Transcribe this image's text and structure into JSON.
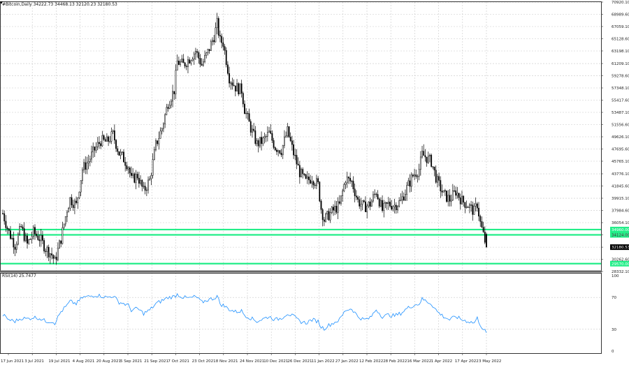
{
  "header": {
    "title": "#Bitcoin,Daily  34222.73 34468.13 32120.23 32180.53"
  },
  "rsi_label": "RSI(14) 25.7477",
  "colors": {
    "candle": "#000000",
    "support": "#22ee88",
    "rsi": "#1e90ff",
    "grid": "#c8c8c8",
    "last_price_bg": "#000000"
  },
  "chart_data": [
    {
      "type": "candlestick",
      "title": "#Bitcoin,Daily",
      "ohlc_last": {
        "open": 34222.73,
        "high": 34468.13,
        "low": 32120.23,
        "close": 32180.53
      },
      "y_ticks": [
        "70920.10",
        "68989.60",
        "67059.10",
        "65128.60",
        "63198.10",
        "61209.10",
        "59278.60",
        "57348.10",
        "55417.60",
        "53487.10",
        "51556.60",
        "49626.10",
        "47695.60",
        "45765.10",
        "43776.10",
        "41845.60",
        "39915.10",
        "37984.60",
        "36054.10",
        "34124.00",
        "32180.53",
        "30262.60",
        "28332.10"
      ],
      "y_range": [
        28332.1,
        70920.1
      ],
      "x_ticks": [
        "17 Jun 2021",
        "3 Jul 2021",
        "19 Jul 2021",
        "4 Aug 2021",
        "20 Aug 2021",
        "5 Sep 2021",
        "21 Sep 2021",
        "7 Oct 2021",
        "23 Oct 2021",
        "8 Nov 2021",
        "24 Nov 2021",
        "10 Dec 2021",
        "26 Dec 2021",
        "11 Jan 2022",
        "27 Jan 2022",
        "12 Feb 2022",
        "28 Feb 2022",
        "16 Mar 2022",
        "1 Apr 2022",
        "17 Apr 2022",
        "3 May 2022"
      ],
      "close_path": [
        [
          0,
          37500
        ],
        [
          4,
          34500
        ],
        [
          8,
          32500
        ],
        [
          12,
          35300
        ],
        [
          16,
          32600
        ],
        [
          20,
          34500
        ],
        [
          24,
          33600
        ],
        [
          28,
          32000
        ],
        [
          32,
          31000
        ],
        [
          34,
          29900
        ],
        [
          38,
          33500
        ],
        [
          42,
          38200
        ],
        [
          44,
          39800
        ],
        [
          48,
          38800
        ],
        [
          52,
          44500
        ],
        [
          56,
          45800
        ],
        [
          60,
          47600
        ],
        [
          64,
          49000
        ],
        [
          68,
          48800
        ],
        [
          72,
          50000
        ],
        [
          76,
          47000
        ],
        [
          78,
          46500
        ],
        [
          82,
          45000
        ],
        [
          84,
          42800
        ],
        [
          88,
          43500
        ],
        [
          92,
          41000
        ],
        [
          96,
          42800
        ],
        [
          100,
          48300
        ],
        [
          104,
          51000
        ],
        [
          108,
          55000
        ],
        [
          112,
          57000
        ],
        [
          114,
          61500
        ],
        [
          118,
          61000
        ],
        [
          122,
          62000
        ],
        [
          126,
          63200
        ],
        [
          130,
          61000
        ],
        [
          134,
          63000
        ],
        [
          138,
          65500
        ],
        [
          140,
          67500
        ],
        [
          142,
          64800
        ],
        [
          144,
          64500
        ],
        [
          148,
          59000
        ],
        [
          152,
          57500
        ],
        [
          156,
          57000
        ],
        [
          158,
          54000
        ],
        [
          162,
          51000
        ],
        [
          166,
          48500
        ],
        [
          170,
          49000
        ],
        [
          174,
          50200
        ],
        [
          178,
          48000
        ],
        [
          182,
          47500
        ],
        [
          186,
          50500
        ],
        [
          190,
          47000
        ],
        [
          194,
          44000
        ],
        [
          198,
          42500
        ],
        [
          202,
          43200
        ],
        [
          206,
          42000
        ],
        [
          208,
          38300
        ],
        [
          210,
          36500
        ],
        [
          212,
          37000
        ],
        [
          216,
          38000
        ],
        [
          220,
          38800
        ],
        [
          224,
          43000
        ],
        [
          228,
          42500
        ],
        [
          232,
          39500
        ],
        [
          236,
          38500
        ],
        [
          240,
          39000
        ],
        [
          244,
          41000
        ],
        [
          248,
          38000
        ],
        [
          252,
          39000
        ],
        [
          256,
          38800
        ],
        [
          260,
          39400
        ],
        [
          264,
          41500
        ],
        [
          268,
          43500
        ],
        [
          272,
          44500
        ],
        [
          274,
          46800
        ],
        [
          276,
          46500
        ],
        [
          280,
          45700
        ],
        [
          282,
          44000
        ],
        [
          284,
          42500
        ],
        [
          288,
          40500
        ],
        [
          292,
          39700
        ],
        [
          296,
          41000
        ],
        [
          300,
          39500
        ],
        [
          304,
          38800
        ],
        [
          308,
          37800
        ],
        [
          310,
          39000
        ],
        [
          312,
          36000
        ],
        [
          314,
          34100
        ],
        [
          316,
          32180
        ]
      ],
      "support_lines": [
        {
          "value": 34960,
          "label": "34960.00"
        },
        {
          "value": 34124,
          "label": "34124.00"
        },
        {
          "value": 29570,
          "label": "29570.00"
        }
      ],
      "last_price": {
        "value": 32180.53,
        "label": "32180.53"
      }
    },
    {
      "type": "line",
      "title": "RSI(14) 25.7477",
      "y_ticks": [
        "100",
        "70",
        "30",
        "0"
      ],
      "y_range": [
        0,
        100
      ],
      "points": [
        [
          0,
          48
        ],
        [
          4,
          42
        ],
        [
          8,
          40
        ],
        [
          12,
          44
        ],
        [
          16,
          43
        ],
        [
          20,
          45
        ],
        [
          24,
          44
        ],
        [
          28,
          40
        ],
        [
          32,
          40
        ],
        [
          34,
          38
        ],
        [
          38,
          52
        ],
        [
          42,
          60
        ],
        [
          44,
          65
        ],
        [
          48,
          62
        ],
        [
          52,
          70
        ],
        [
          56,
          71
        ],
        [
          60,
          73
        ],
        [
          64,
          72
        ],
        [
          68,
          70
        ],
        [
          72,
          72
        ],
        [
          76,
          64
        ],
        [
          78,
          63
        ],
        [
          82,
          60
        ],
        [
          84,
          54
        ],
        [
          88,
          56
        ],
        [
          92,
          50
        ],
        [
          96,
          54
        ],
        [
          100,
          62
        ],
        [
          104,
          66
        ],
        [
          108,
          70
        ],
        [
          112,
          71
        ],
        [
          114,
          74
        ],
        [
          118,
          70
        ],
        [
          122,
          69
        ],
        [
          126,
          71
        ],
        [
          130,
          64
        ],
        [
          134,
          67
        ],
        [
          138,
          69
        ],
        [
          140,
          72
        ],
        [
          142,
          62
        ],
        [
          144,
          60
        ],
        [
          148,
          55
        ],
        [
          152,
          52
        ],
        [
          156,
          53
        ],
        [
          158,
          48
        ],
        [
          162,
          44
        ],
        [
          166,
          40
        ],
        [
          170,
          43
        ],
        [
          174,
          46
        ],
        [
          178,
          42
        ],
        [
          182,
          44
        ],
        [
          186,
          50
        ],
        [
          190,
          46
        ],
        [
          194,
          40
        ],
        [
          198,
          38
        ],
        [
          202,
          42
        ],
        [
          206,
          40
        ],
        [
          208,
          33
        ],
        [
          210,
          31
        ],
        [
          212,
          34
        ],
        [
          216,
          38
        ],
        [
          220,
          42
        ],
        [
          224,
          54
        ],
        [
          228,
          56
        ],
        [
          232,
          46
        ],
        [
          236,
          42
        ],
        [
          240,
          44
        ],
        [
          244,
          55
        ],
        [
          248,
          46
        ],
        [
          252,
          48
        ],
        [
          256,
          47
        ],
        [
          260,
          50
        ],
        [
          264,
          56
        ],
        [
          268,
          60
        ],
        [
          272,
          62
        ],
        [
          274,
          68
        ],
        [
          276,
          66
        ],
        [
          280,
          62
        ],
        [
          282,
          57
        ],
        [
          284,
          52
        ],
        [
          288,
          46
        ],
        [
          292,
          42
        ],
        [
          296,
          46
        ],
        [
          300,
          42
        ],
        [
          304,
          40
        ],
        [
          308,
          38
        ],
        [
          310,
          44
        ],
        [
          312,
          36
        ],
        [
          314,
          30
        ],
        [
          316,
          25.7
        ]
      ]
    }
  ]
}
